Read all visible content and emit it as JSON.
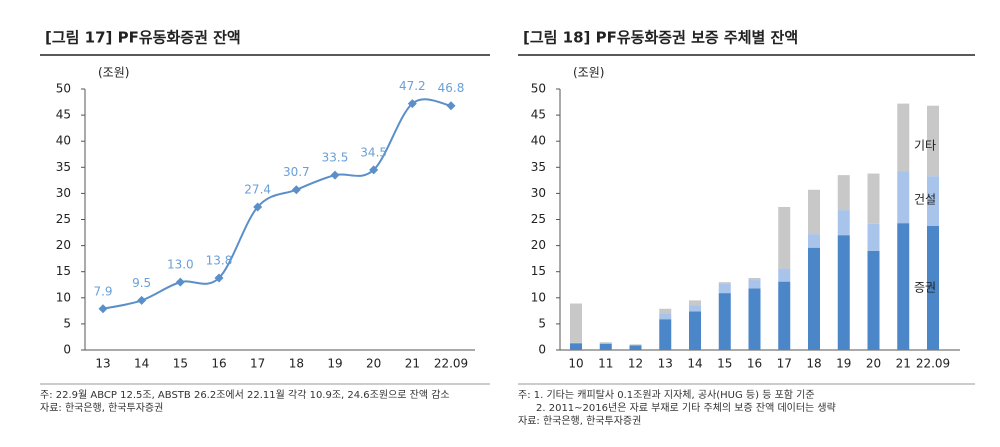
{
  "chart_data": [
    {
      "type": "line",
      "title": "[그림 17] PF유동화증권 잔액",
      "unit": "(조원)",
      "categories": [
        "13",
        "14",
        "15",
        "16",
        "17",
        "18",
        "19",
        "20",
        "21",
        "22.09"
      ],
      "values": [
        7.9,
        9.5,
        13.0,
        13.8,
        27.4,
        30.7,
        33.5,
        34.5,
        47.2,
        46.8
      ],
      "value_labels": [
        "7.9",
        "9.5",
        "13.0",
        "13.8",
        "27.4",
        "30.7",
        "33.5",
        "34.5",
        "47.2",
        "46.8"
      ],
      "color": "#5b8fc9",
      "ylim": [
        0,
        50
      ],
      "yticks": [
        0,
        5,
        10,
        15,
        20,
        25,
        30,
        35,
        40,
        45,
        50
      ],
      "notes": [
        "주: 22.9월 ABCP 12.5조, ABSTB 26.2조에서 22.11월 각각 10.9조, 24.6조원으로 잔액 감소",
        "자료: 한국은행, 한국투자증권"
      ]
    },
    {
      "type": "stacked_bar",
      "title": "[그림 18] PF유동화증권 보증 주체별 잔액",
      "unit": "(조원)",
      "categories": [
        "10",
        "11",
        "12",
        "13",
        "14",
        "15",
        "16",
        "17",
        "18",
        "19",
        "20",
        "21",
        "22.09"
      ],
      "series": [
        {
          "name": "증권",
          "color": "#4a86c8",
          "values": [
            1.3,
            1.2,
            0.9,
            5.9,
            7.4,
            10.9,
            11.8,
            13.1,
            19.6,
            22.0,
            19.0,
            24.3,
            23.8
          ]
        },
        {
          "name": "건설",
          "color": "#a9c4ea",
          "values": [
            0.1,
            0.2,
            0.1,
            1.0,
            1.2,
            1.9,
            1.6,
            2.5,
            2.6,
            4.8,
            5.2,
            9.9,
            9.5
          ]
        },
        {
          "name": "기타",
          "color": "#c8c8c8",
          "values": [
            7.5,
            0.1,
            0.1,
            1.0,
            0.9,
            0.2,
            0.4,
            11.8,
            8.5,
            6.7,
            9.6,
            13.0,
            13.5
          ]
        }
      ],
      "ylim": [
        0,
        50
      ],
      "yticks": [
        0,
        5,
        10,
        15,
        20,
        25,
        30,
        35,
        40,
        45,
        50
      ],
      "notes": [
        "주: 1. 기타는 캐피탈사 0.1조원과 지자체, 공사(HUG 등) 등 포함 기준",
        "2. 2011~2016년은 자료 부재로 기타 주체의 보증 잔액 데이터는 생략",
        "자료: 한국은행, 한국투자증권"
      ]
    }
  ]
}
